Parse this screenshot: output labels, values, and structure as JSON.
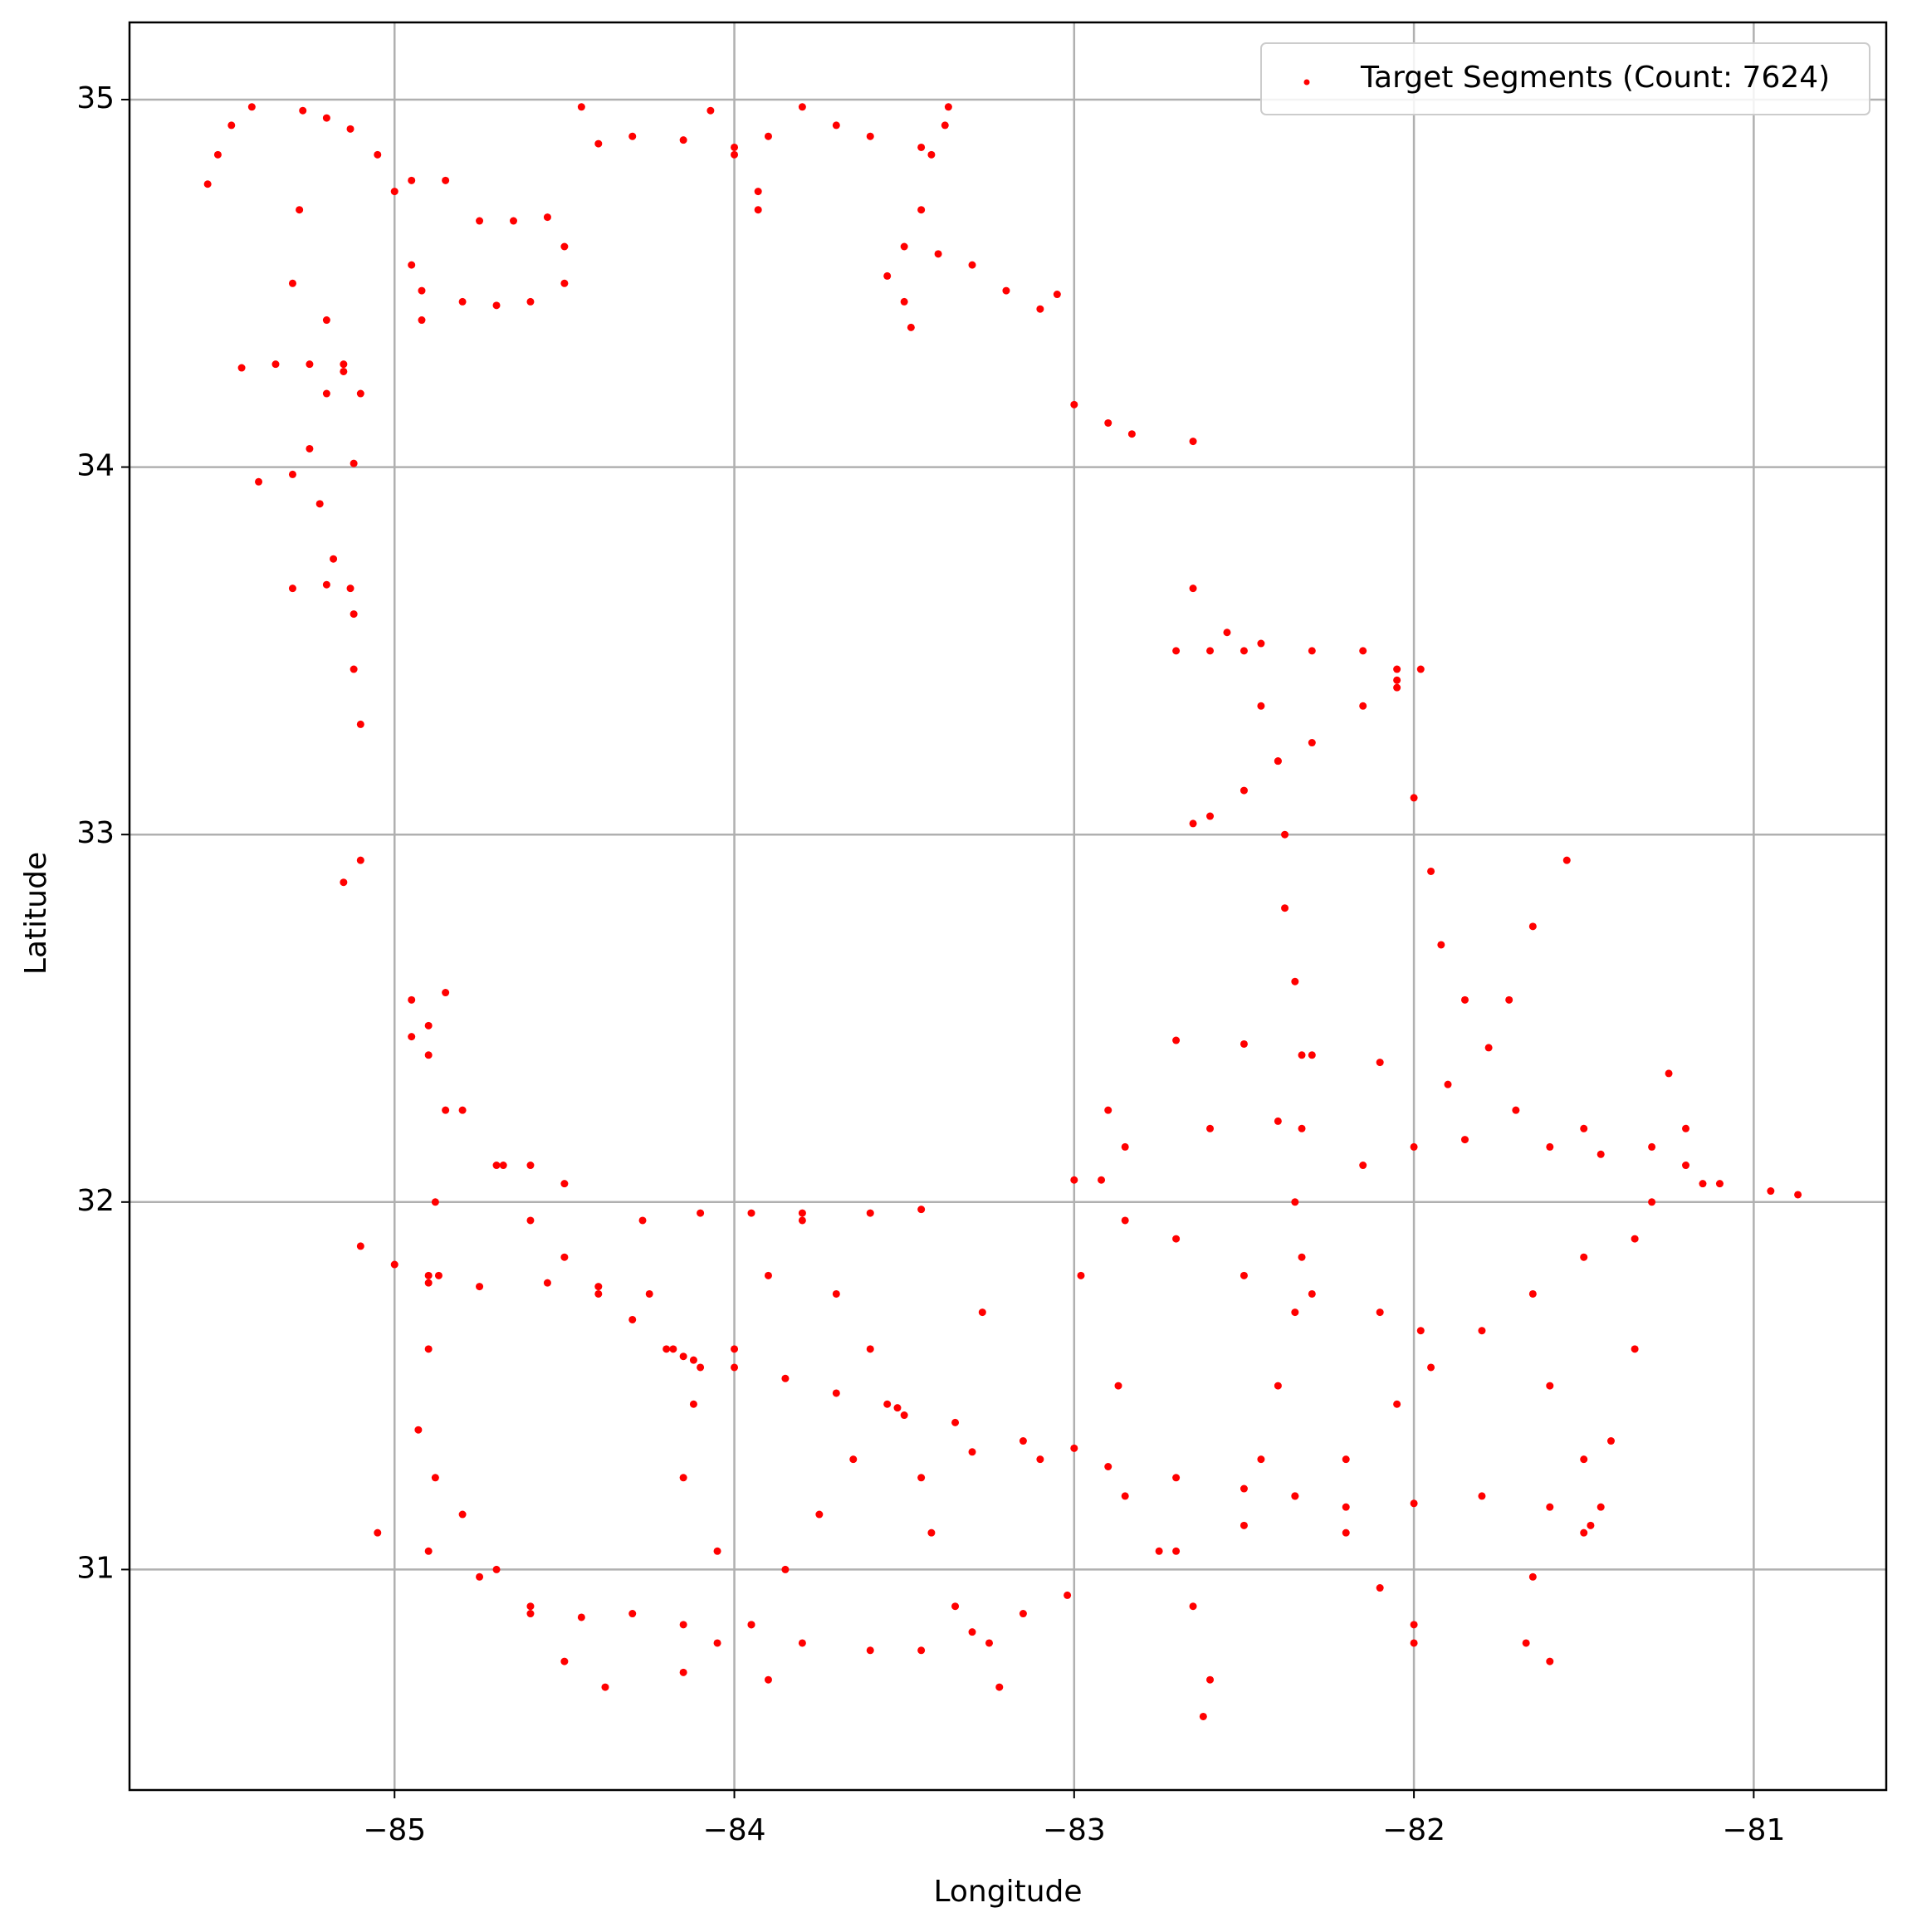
{
  "chart_data": {
    "type": "scatter",
    "x_label": "Longitude",
    "y_label": "Latitude",
    "xlim": [
      -85.78,
      -80.61
    ],
    "ylim": [
      30.4,
      35.21
    ],
    "xticks": [
      {
        "value": -85,
        "label": "−85"
      },
      {
        "value": -84,
        "label": "−84"
      },
      {
        "value": -83,
        "label": "−83"
      },
      {
        "value": -82,
        "label": "−82"
      },
      {
        "value": -81,
        "label": "−81"
      }
    ],
    "yticks": [
      31,
      32,
      33,
      34,
      35
    ],
    "grid": true,
    "legend": "upper right",
    "series": [
      {
        "name": "Target Segments (Count: 7624)",
        "color": "#ff0000",
        "x": [
          -85.42,
          -85.48,
          -85.52,
          -85.55,
          -85.27,
          -85.2,
          -85.13,
          -85.05,
          -85.28,
          -85.3,
          -85.2,
          -85.15,
          -85.2,
          -85.25,
          -85.22,
          -85.18,
          -85.12,
          -85.12,
          -85.1,
          -85.45,
          -85.35,
          -85.25,
          -85.15,
          -85.1,
          -85.4,
          -85.3,
          -85.12,
          -85.3,
          -85.2,
          -85.13,
          -85.15,
          -85.1,
          -85.0,
          -84.95,
          -84.85,
          -84.75,
          -84.65,
          -84.55,
          -84.5,
          -84.5,
          -84.6,
          -84.7,
          -84.8,
          -84.92,
          -84.95,
          -84.92,
          -84.45,
          -84.4,
          -84.3,
          -84.15,
          -84.0,
          -83.9,
          -83.8,
          -83.7,
          -83.6,
          -83.45,
          -83.38,
          -83.37,
          -84.07,
          -84.0,
          -83.93,
          -83.93,
          -83.42,
          -83.45,
          -83.5,
          -83.4,
          -83.3,
          -83.2,
          -83.1,
          -83.05,
          -83.55,
          -83.5,
          -83.48,
          -83.0,
          -82.9,
          -82.83,
          -82.65,
          -82.65,
          -82.55,
          -82.45,
          -82.3,
          -82.15,
          -82.05,
          -81.98,
          -82.7,
          -82.6,
          -82.05,
          -82.15,
          -82.3,
          -82.4,
          -82.5,
          -82.6,
          -82.65,
          -82.5,
          -82.45,
          -82.4,
          -82.38,
          -82.38,
          -82.35,
          -82.33,
          -82.33,
          -82.35,
          -82.33,
          -82.35,
          -82.4,
          -82.45,
          -82.05,
          -82.0,
          -81.95,
          -81.92,
          -81.85,
          -81.78,
          -81.72,
          -81.65,
          -81.55,
          -82.7,
          -82.5,
          -82.3,
          -82.1,
          -81.9,
          -81.7,
          -81.5,
          -81.3,
          -81.2,
          -81.1,
          -80.95,
          -80.87,
          -81.3,
          -81.35,
          -81.5,
          -81.65,
          -81.8,
          -81.95,
          -82.05,
          -82.2,
          -82.35,
          -81.25,
          -81.2,
          -81.15,
          -81.35,
          -81.42,
          -81.5,
          -83.0,
          -82.85,
          -82.6,
          -82.4,
          -82.15,
          -82.0,
          -81.85,
          -81.6,
          -81.45,
          -82.9,
          -82.92,
          -82.98,
          -82.87,
          -82.85,
          -82.75,
          -82.65,
          -82.6,
          -82.62,
          -82.85,
          -82.7,
          -82.5,
          -82.3,
          -82.1,
          -81.98,
          -83.3,
          -83.1,
          -82.9,
          -82.7,
          -82.5,
          -82.35,
          -82.2,
          -82.0,
          -81.8,
          -81.6,
          -81.45,
          -82.7,
          -82.5,
          -82.2,
          -82.1,
          -82.0,
          -82.0,
          -81.65,
          -81.67,
          -81.6,
          -81.6,
          -81.5,
          -81.48,
          -84.95,
          -84.85,
          -84.9,
          -84.95,
          -84.9,
          -84.8,
          -84.7,
          -84.6,
          -84.5,
          -84.4,
          -84.3,
          -84.2,
          -84.12,
          -84.0,
          -83.85,
          -83.7,
          -83.52,
          -83.35,
          -83.15,
          -83.0,
          -84.15,
          -84.1,
          -83.55,
          -83.5,
          -84.85,
          -84.88,
          -84.87,
          -84.9,
          -84.93,
          -84.88,
          -84.8,
          -84.7,
          -84.6,
          -84.5,
          -84.38,
          -84.68,
          -84.6,
          -84.5,
          -85.1,
          -85.0,
          -84.9,
          -84.9,
          -84.75,
          -84.55,
          -84.4,
          -84.27,
          -84.25,
          -84.18,
          -84.12,
          -84.15,
          -84.05,
          -83.95,
          -83.9,
          -84.1,
          -83.95,
          -83.8,
          -83.6,
          -83.45,
          -84.0,
          -83.9,
          -83.8,
          -83.7,
          -83.6,
          -83.45,
          -83.42,
          -83.35,
          -83.25,
          -83.22,
          -83.65,
          -83.75,
          -83.85,
          -83.95,
          -84.05,
          -84.15,
          -85.05,
          -84.9,
          -84.75,
          -84.6,
          -84.45,
          -84.3,
          -84.15,
          -83.8,
          -83.6,
          -83.45,
          -83.3,
          -83.15,
          -83.02,
          -83.27
        ],
        "values": [
          34.98,
          34.93,
          34.85,
          34.77,
          34.97,
          34.95,
          34.92,
          34.85,
          34.7,
          34.5,
          34.4,
          34.28,
          34.2,
          34.05,
          33.9,
          33.75,
          33.6,
          33.45,
          33.3,
          34.27,
          34.28,
          34.28,
          34.26,
          34.2,
          33.96,
          33.98,
          34.01,
          33.67,
          33.68,
          33.67,
          32.87,
          32.93,
          34.75,
          34.78,
          34.78,
          34.67,
          34.67,
          34.68,
          34.6,
          34.5,
          34.45,
          34.44,
          34.45,
          34.48,
          34.55,
          34.4,
          34.98,
          34.88,
          34.9,
          34.89,
          34.87,
          34.9,
          34.98,
          34.93,
          34.9,
          34.87,
          34.93,
          34.98,
          34.97,
          34.85,
          34.75,
          34.7,
          34.85,
          34.7,
          34.6,
          34.58,
          34.55,
          34.48,
          34.43,
          34.47,
          34.52,
          34.45,
          34.38,
          34.17,
          34.12,
          34.09,
          34.07,
          33.67,
          33.55,
          33.52,
          33.5,
          33.5,
          33.45,
          33.45,
          33.5,
          33.5,
          33.42,
          33.35,
          33.25,
          33.2,
          33.12,
          33.05,
          33.03,
          33.5,
          33.35,
          33.2,
          33.0,
          32.8,
          32.6,
          32.4,
          32.2,
          32.0,
          31.85,
          31.7,
          31.5,
          31.3,
          33.4,
          33.1,
          32.9,
          32.7,
          32.55,
          32.42,
          32.55,
          32.75,
          32.93,
          32.44,
          32.43,
          32.4,
          32.38,
          32.32,
          32.25,
          32.2,
          32.15,
          32.1,
          32.05,
          32.03,
          32.02,
          32.0,
          31.9,
          31.85,
          31.75,
          31.65,
          31.55,
          31.45,
          31.3,
          31.2,
          32.35,
          32.2,
          32.05,
          31.6,
          31.35,
          31.1,
          32.06,
          32.15,
          32.2,
          32.22,
          32.1,
          32.15,
          32.17,
          32.15,
          32.13,
          32.25,
          32.06,
          31.8,
          31.5,
          31.2,
          31.05,
          30.9,
          30.7,
          30.6,
          31.95,
          31.9,
          31.8,
          31.75,
          31.7,
          31.65,
          31.32,
          31.3,
          31.28,
          31.25,
          31.22,
          31.2,
          31.17,
          31.18,
          31.2,
          31.17,
          31.17,
          31.05,
          31.12,
          31.1,
          30.95,
          30.85,
          30.8,
          30.98,
          30.8,
          30.75,
          31.5,
          31.3,
          31.12,
          32.55,
          32.57,
          32.48,
          32.45,
          32.4,
          32.25,
          32.1,
          31.95,
          31.85,
          31.75,
          31.68,
          31.6,
          31.57,
          31.55,
          31.52,
          31.48,
          31.44,
          31.4,
          31.35,
          31.33,
          31.58,
          31.55,
          31.45,
          31.42,
          32.25,
          32.0,
          31.8,
          31.6,
          31.38,
          31.25,
          31.15,
          31.0,
          30.88,
          30.75,
          30.68,
          32.1,
          32.1,
          32.05,
          31.88,
          31.83,
          31.8,
          31.78,
          31.77,
          31.78,
          31.77,
          31.95,
          31.75,
          31.6,
          31.45,
          31.25,
          31.05,
          30.85,
          30.7,
          31.97,
          31.97,
          31.97,
          31.97,
          31.98,
          31.6,
          31.8,
          31.95,
          31.75,
          31.6,
          31.25,
          31.1,
          30.9,
          30.8,
          30.68,
          31.3,
          31.15,
          31.0,
          30.85,
          30.8,
          30.72,
          31.1,
          31.05,
          30.98,
          30.9,
          30.87,
          30.88,
          30.85,
          30.8,
          30.78,
          30.78,
          30.83,
          30.88,
          30.93,
          31.7
        ]
      }
    ]
  }
}
